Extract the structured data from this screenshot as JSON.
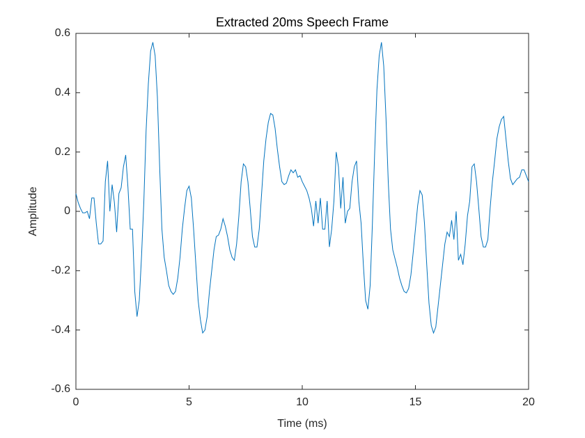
{
  "chart_data": {
    "type": "line",
    "title": "Extracted 20ms Speech Frame",
    "x_label": "Time (ms)",
    "y_label": "Amplitude",
    "xlim": [
      0,
      20
    ],
    "ylim": [
      -0.6,
      0.6
    ],
    "xticks": [
      0,
      5,
      10,
      15,
      20
    ],
    "yticks": [
      -0.6,
      -0.4,
      -0.2,
      0,
      0.2,
      0.4,
      0.6
    ],
    "grid": false,
    "x": [
      0,
      0.1,
      0.2,
      0.3,
      0.4,
      0.5,
      0.6,
      0.7,
      0.8,
      0.9,
      1,
      1.1,
      1.2,
      1.3,
      1.4,
      1.5,
      1.6,
      1.7,
      1.8,
      1.9,
      2,
      2.1,
      2.2,
      2.3,
      2.4,
      2.5,
      2.6,
      2.7,
      2.8,
      2.9,
      3,
      3.1,
      3.2,
      3.3,
      3.4,
      3.5,
      3.6,
      3.7,
      3.8,
      3.9,
      4,
      4.1,
      4.2,
      4.3,
      4.4,
      4.5,
      4.6,
      4.7,
      4.8,
      4.9,
      5,
      5.1,
      5.2,
      5.3,
      5.4,
      5.5,
      5.6,
      5.7,
      5.8,
      5.9,
      6,
      6.1,
      6.2,
      6.3,
      6.4,
      6.5,
      6.6,
      6.7,
      6.8,
      6.9,
      7,
      7.1,
      7.2,
      7.3,
      7.4,
      7.5,
      7.6,
      7.7,
      7.8,
      7.9,
      8,
      8.1,
      8.2,
      8.3,
      8.4,
      8.5,
      8.6,
      8.7,
      8.8,
      8.9,
      9,
      9.1,
      9.2,
      9.3,
      9.4,
      9.5,
      9.6,
      9.7,
      9.8,
      9.9,
      10,
      10.1,
      10.2,
      10.3,
      10.4,
      10.5,
      10.6,
      10.7,
      10.8,
      10.9,
      11,
      11.1,
      11.2,
      11.3,
      11.4,
      11.5,
      11.6,
      11.7,
      11.8,
      11.9,
      12,
      12.1,
      12.2,
      12.3,
      12.4,
      12.5,
      12.6,
      12.7,
      12.8,
      12.9,
      13,
      13.1,
      13.2,
      13.3,
      13.4,
      13.5,
      13.6,
      13.7,
      13.8,
      13.9,
      14,
      14.1,
      14.2,
      14.3,
      14.4,
      14.5,
      14.6,
      14.7,
      14.8,
      14.9,
      15,
      15.1,
      15.2,
      15.3,
      15.4,
      15.5,
      15.6,
      15.7,
      15.8,
      15.9,
      16,
      16.1,
      16.2,
      16.3,
      16.4,
      16.5,
      16.6,
      16.7,
      16.8,
      16.9,
      17,
      17.1,
      17.2,
      17.3,
      17.4,
      17.5,
      17.6,
      17.7,
      17.8,
      17.9,
      18,
      18.1,
      18.2,
      18.3,
      18.4,
      18.5,
      18.6,
      18.7,
      18.8,
      18.9,
      19,
      19.1,
      19.2,
      19.3,
      19.4,
      19.5,
      19.6,
      19.7,
      19.8,
      19.9,
      20
    ],
    "series": [
      {
        "color": "#0072bd",
        "values": [
          0.06,
          0.03,
          0.01,
          -0.005,
          -0.005,
          0.0,
          -0.025,
          0.045,
          0.045,
          -0.04,
          -0.11,
          -0.11,
          -0.1,
          0.1,
          0.17,
          0.0,
          0.09,
          0.03,
          -0.07,
          0.06,
          0.08,
          0.15,
          0.19,
          0.08,
          -0.06,
          -0.06,
          -0.27,
          -0.355,
          -0.3,
          -0.15,
          0.03,
          0.27,
          0.43,
          0.54,
          0.57,
          0.525,
          0.385,
          0.15,
          -0.06,
          -0.155,
          -0.2,
          -0.25,
          -0.27,
          -0.28,
          -0.27,
          -0.225,
          -0.155,
          -0.06,
          0.01,
          0.07,
          0.085,
          0.045,
          -0.06,
          -0.18,
          -0.3,
          -0.365,
          -0.41,
          -0.4,
          -0.355,
          -0.27,
          -0.2,
          -0.13,
          -0.085,
          -0.08,
          -0.06,
          -0.025,
          -0.05,
          -0.085,
          -0.13,
          -0.155,
          -0.165,
          -0.11,
          -0.015,
          0.1,
          0.16,
          0.15,
          0.1,
          0.01,
          -0.085,
          -0.12,
          -0.12,
          -0.06,
          0.055,
          0.17,
          0.245,
          0.3,
          0.33,
          0.325,
          0.28,
          0.21,
          0.15,
          0.1,
          0.09,
          0.095,
          0.12,
          0.14,
          0.13,
          0.14,
          0.115,
          0.12,
          0.1,
          0.085,
          0.07,
          0.045,
          0.01,
          -0.05,
          0.035,
          -0.04,
          0.045,
          -0.06,
          -0.06,
          0.035,
          -0.12,
          -0.06,
          0.035,
          0.2,
          0.15,
          0.01,
          0.115,
          -0.04,
          0.0,
          0.01,
          0.1,
          0.15,
          0.17,
          0.035,
          -0.04,
          -0.18,
          -0.3,
          -0.33,
          -0.25,
          -0.04,
          0.2,
          0.41,
          0.525,
          0.57,
          0.49,
          0.315,
          0.1,
          -0.06,
          -0.13,
          -0.16,
          -0.19,
          -0.225,
          -0.25,
          -0.27,
          -0.275,
          -0.26,
          -0.215,
          -0.14,
          -0.06,
          0.02,
          0.07,
          0.055,
          -0.04,
          -0.18,
          -0.31,
          -0.385,
          -0.41,
          -0.39,
          -0.32,
          -0.25,
          -0.18,
          -0.11,
          -0.07,
          -0.085,
          -0.03,
          -0.095,
          0.0,
          -0.165,
          -0.145,
          -0.18,
          -0.11,
          -0.015,
          0.035,
          0.15,
          0.16,
          0.1,
          0.01,
          -0.085,
          -0.12,
          -0.12,
          -0.095,
          0.01,
          0.1,
          0.17,
          0.245,
          0.285,
          0.31,
          0.32,
          0.245,
          0.17,
          0.11,
          0.09,
          0.1,
          0.11,
          0.115,
          0.14,
          0.14,
          0.12,
          0.1
        ]
      }
    ]
  }
}
